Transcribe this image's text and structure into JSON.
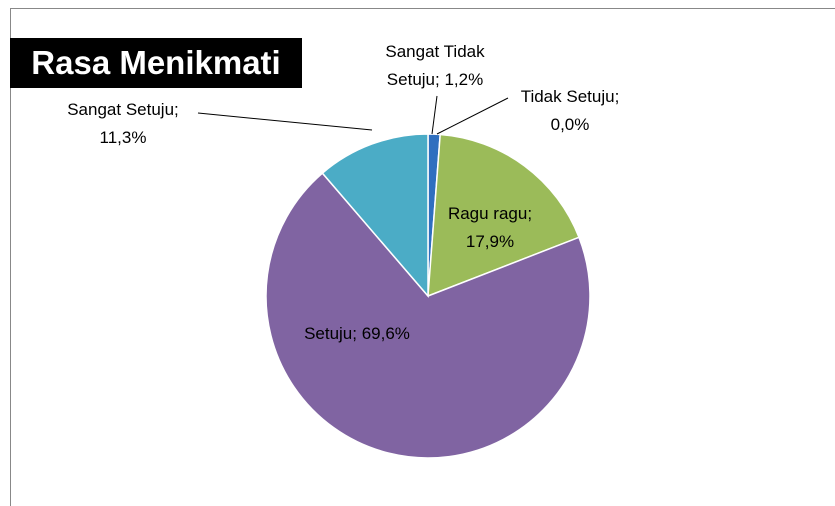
{
  "chart_data": {
    "type": "pie",
    "title": "Rasa Menikmati",
    "categories": [
      "Sangat Tidak Setuju",
      "Tidak Setuju",
      "Ragu ragu",
      "Setuju",
      "Sangat Setuju"
    ],
    "values": [
      1.2,
      0,
      17.9,
      69.6,
      11.3
    ],
    "value_labels": [
      "1,2%",
      "0,0%",
      "17,9%",
      "69,6%",
      "11,3%"
    ],
    "colors": [
      "#2f6fbf",
      "#c0504d",
      "#9bbb59",
      "#8064a2",
      "#4bacc6"
    ]
  }
}
